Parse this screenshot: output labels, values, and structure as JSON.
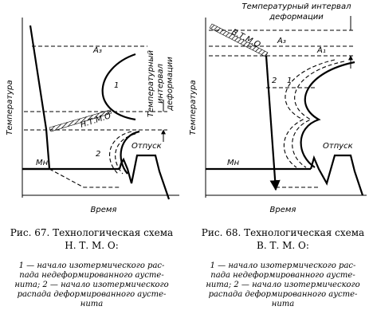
{
  "figures": [
    {
      "labels": {
        "a3": "A₃",
        "y_axis": "Температура",
        "x_axis": "Время",
        "interval": [
          "Температурный",
          "интервал",
          "деформации"
        ],
        "process": "Н.Т.М.О",
        "curve1": "1",
        "curve2": "2",
        "temper": "Отпуск",
        "mn": "Mн"
      },
      "caption": [
        "Рис. 67. Технологическая схема",
        "Н. Т. М. О:"
      ],
      "description": [
        "1 — начало изотермического рас-",
        "пада недеформированного аусте-",
        "нита; 2 — начало изотермического",
        "распада деформированного аусте-",
        "нита"
      ]
    },
    {
      "labels": {
        "interval": [
          "Температурный интервал",
          "деформации"
        ],
        "a3": "A₃",
        "a1": "A₁",
        "process": "В.Т.М.О",
        "curve2": "2",
        "curve1": "1",
        "y_axis": "Температура",
        "temper": "Отпуск",
        "mn": "Mн",
        "x_axis": "Время"
      },
      "caption": [
        "Рис. 68. Технологическая схема",
        "В. Т. М. О:"
      ],
      "description": [
        "1 — начало изотермического рас-",
        "пада недеформированного аусте-",
        "нита; 2 — начало изотермического",
        "распада деформированного аусте-",
        "нита"
      ]
    }
  ]
}
